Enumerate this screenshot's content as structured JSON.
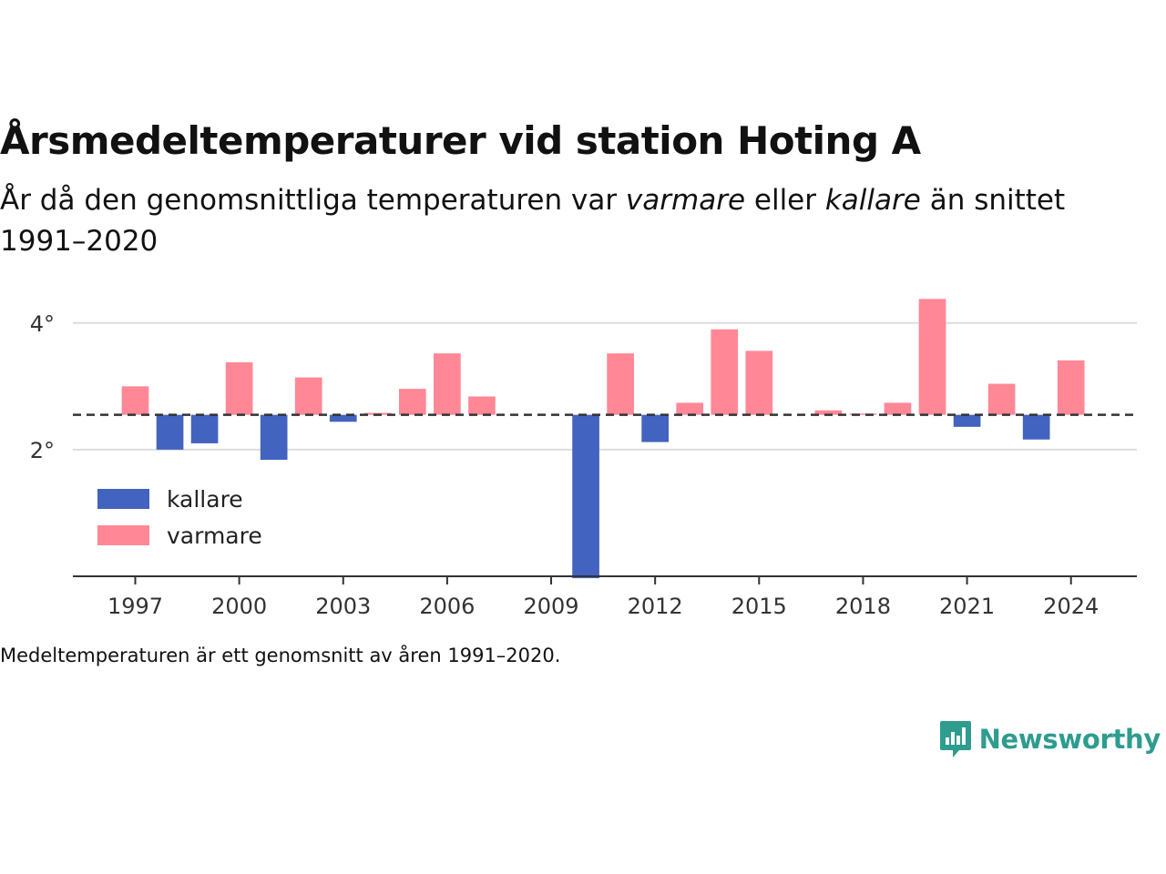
{
  "title": "Årsmedeltemperaturer vid station Hoting A",
  "subtitle": {
    "part1": "År då den genomsnittliga temperaturen var ",
    "warm_word": "varmare",
    "part2": " eller ",
    "cold_word": "kallare",
    "part3": " än snittet 1991–2020"
  },
  "note": "Medeltemperaturen är ett genomsnitt av åren 1991–2020.",
  "brand": {
    "name": "Newsworthy",
    "icon": "newsworthy-logo-icon"
  },
  "colors": {
    "warm": "#ff8796",
    "cold": "#4263bf",
    "grid": "#dddddd",
    "baseline": "#333333",
    "brand": "#2e9c8f"
  },
  "chart_data": {
    "type": "bar",
    "baseline": 2.55,
    "ylim": [
      0,
      4.5
    ],
    "yticks": [
      2,
      4
    ],
    "ytick_labels": [
      "2°",
      "4°"
    ],
    "xlim": [
      1995.2,
      2025.9
    ],
    "xticks": [
      1997,
      2000,
      2003,
      2006,
      2009,
      2012,
      2015,
      2018,
      2021,
      2024
    ],
    "legend": {
      "position": "bottom-left",
      "items": [
        {
          "label": "kallare",
          "color": "#4263bf"
        },
        {
          "label": "varmare",
          "color": "#ff8796"
        }
      ]
    },
    "grid": true,
    "categories": [
      1997,
      1998,
      1999,
      2000,
      2001,
      2002,
      2003,
      2004,
      2005,
      2006,
      2007,
      2010,
      2011,
      2012,
      2013,
      2014,
      2015,
      2017,
      2018,
      2019,
      2020,
      2021,
      2022,
      2023,
      2024
    ],
    "values": [
      3.0,
      2.0,
      2.1,
      3.38,
      1.84,
      3.14,
      2.44,
      2.58,
      2.96,
      3.52,
      2.84,
      -0.03,
      3.52,
      2.12,
      2.74,
      3.9,
      3.56,
      2.62,
      2.57,
      2.74,
      4.38,
      2.36,
      3.04,
      2.16,
      3.41
    ]
  }
}
